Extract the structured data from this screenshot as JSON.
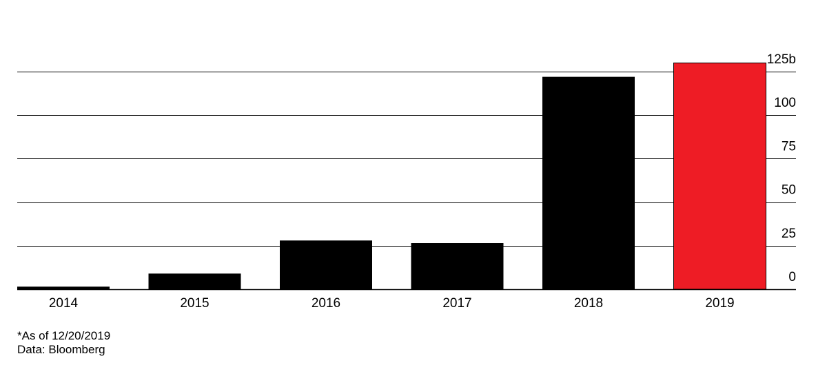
{
  "chart_data": {
    "type": "bar",
    "categories": [
      "2014",
      "2015",
      "2016",
      "2017",
      "2018",
      "2019"
    ],
    "values": [
      1.5,
      9,
      28,
      26.5,
      122,
      130
    ],
    "ylim": [
      0,
      125
    ],
    "y_ticks": [
      0,
      25,
      50,
      75,
      100,
      125
    ],
    "y_tick_labels": [
      "0",
      "25",
      "50",
      "75",
      "100",
      "125b"
    ],
    "y_axis_side": "right",
    "grid": true,
    "colors": [
      "#000000",
      "#000000",
      "#000000",
      "#000000",
      "#000000",
      "#ee1c25"
    ]
  },
  "footnote": "*As of 12/20/2019",
  "source": "Data: Bloomberg"
}
